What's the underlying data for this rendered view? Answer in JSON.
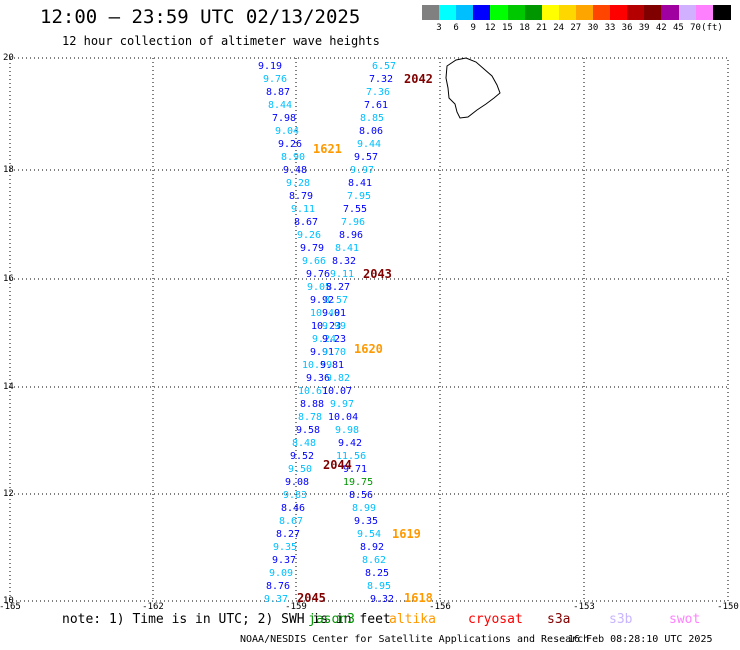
{
  "header": {
    "title": "12:00 – 23:59 UTC 02/13/2025",
    "subtitle": "12 hour collection of altimeter wave heights"
  },
  "color_scale": {
    "swatches": [
      "#808080",
      "#00ffff",
      "#00bfff",
      "#0000ff",
      "#00ff00",
      "#00c800",
      "#009600",
      "#ffff00",
      "#ffd700",
      "#ffa500",
      "#ff4500",
      "#ff0000",
      "#b40000",
      "#800000",
      "#a000a0",
      "#d0b0ff",
      "#ff80ff",
      "#000000"
    ],
    "labels": [
      "3",
      "6",
      "9",
      "12",
      "15",
      "18",
      "21",
      "24",
      "27",
      "30",
      "33",
      "36",
      "39",
      "42",
      "45",
      "70"
    ],
    "unit": "(ft)"
  },
  "axes": {
    "x_ticks": [
      "-165",
      "-162",
      "-159",
      "-156",
      "-153",
      "-150"
    ],
    "y_ticks": [
      "20",
      "18",
      "16",
      "14",
      "12",
      "10"
    ]
  },
  "passes": [
    {
      "id": "2042",
      "color": "#800000"
    },
    {
      "id": "1621",
      "color": "#ff9900"
    },
    {
      "id": "2043",
      "color": "#800000"
    },
    {
      "id": "1620",
      "color": "#ff9900"
    },
    {
      "id": "2044",
      "color": "#800000"
    },
    {
      "id": "1619",
      "color": "#ff9900"
    },
    {
      "id": "2045",
      "color": "#800000"
    },
    {
      "id": "1618",
      "color": "#ff9900"
    }
  ],
  "track_left": {
    "colors": [
      "#0000ff",
      "#00bfff"
    ],
    "values": [
      "9.19",
      "9.76",
      "8.87",
      "8.44",
      "7.98",
      "9.04",
      "9.26",
      "8.90",
      "9.48",
      "9.28",
      "8.79",
      "9.11",
      "8.67",
      "9.26",
      "9.79",
      "9.66",
      "9.76",
      "9.05",
      "9.92",
      "10.49",
      "10.23",
      "9.24",
      "9.91",
      "10.59",
      "9.36",
      "10.61",
      "8.88",
      "8.78",
      "9.58",
      "8.48",
      "9.52",
      "9.50",
      "9.08",
      "9.83",
      "8.46",
      "8.67",
      "8.27",
      "9.35",
      "9.37",
      "9.09",
      "8.76",
      "9.37"
    ]
  },
  "track_right": {
    "colors": [
      "#00bfff",
      "#0000ff"
    ],
    "values": [
      "6.57",
      "7.32",
      "7.36",
      "7.61",
      "8.85",
      "8.06",
      "9.44",
      "9.57",
      "9.97",
      "8.41",
      "7.95",
      "7.55",
      "7.96",
      "8.96",
      "8.41",
      "8.32",
      "9.11",
      "8.27",
      "8.57",
      "9.01",
      "9.99",
      "9.23",
      "9.70",
      "9.81",
      "9.82",
      "10.07",
      "9.97",
      "10.04",
      "9.98",
      "9.42",
      "11.56",
      "9.71",
      "19.75",
      "8.56",
      "8.99",
      "9.35",
      "9.54",
      "8.92",
      "8.62",
      "8.25",
      "8.95",
      "9.32"
    ],
    "special": {
      "index": 32,
      "color": "#009600"
    }
  },
  "footer": {
    "note": "note: 1) Time is in UTC; 2) SWH is in feet",
    "missions": [
      {
        "name": "jason3",
        "color": "#009600"
      },
      {
        "name": "altika",
        "color": "#ff9900"
      },
      {
        "name": "cryosat",
        "color": "#ff0000"
      },
      {
        "name": "s3a",
        "color": "#800000"
      },
      {
        "name": "s3b",
        "color": "#c8b4ff"
      },
      {
        "name": "swot",
        "color": "#ff80ff"
      }
    ],
    "credit": "NOAA/NESDIS Center for Satellite Applications and Research",
    "timestamp": "16 Feb 08:28:10 UTC 2025"
  }
}
